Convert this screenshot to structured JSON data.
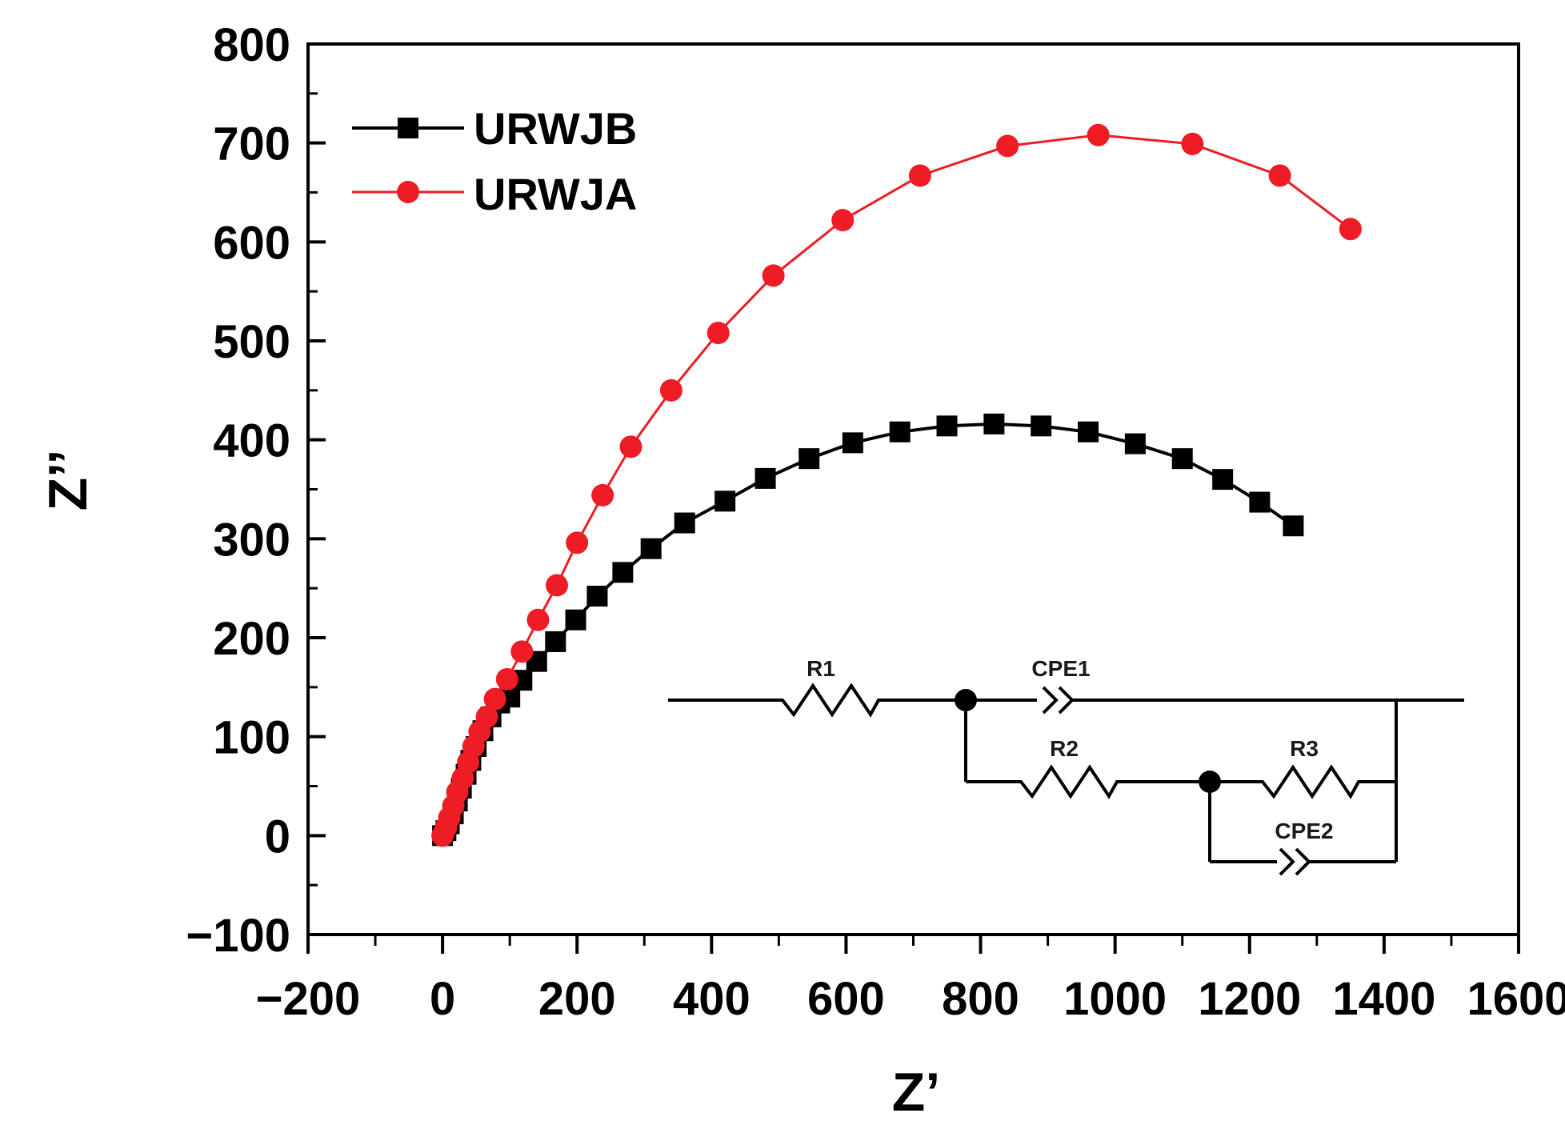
{
  "chart_data": {
    "type": "scatter",
    "xlabel": "Z’",
    "ylabel": "Z’’",
    "xlim": [
      -200,
      1600
    ],
    "ylim": [
      -100,
      800
    ],
    "x_ticks": [
      -200,
      0,
      200,
      400,
      600,
      800,
      1000,
      1200,
      1400,
      1600
    ],
    "y_ticks": [
      -100,
      0,
      100,
      200,
      300,
      400,
      500,
      600,
      700,
      800
    ],
    "x_tick_labels": [
      "−200",
      "0",
      "200",
      "400",
      "600",
      "800",
      "1000",
      "1200",
      "1400",
      "1600"
    ],
    "y_tick_labels": [
      "−100",
      "0",
      "100",
      "200",
      "300",
      "400",
      "500",
      "600",
      "700",
      "800"
    ],
    "grid": false,
    "legend_position": "top-left",
    "series": [
      {
        "name": "URWJB",
        "color": "#000000",
        "marker": "square",
        "points": [
          [
            0,
            0
          ],
          [
            5,
            5
          ],
          [
            10,
            12
          ],
          [
            16,
            22
          ],
          [
            22,
            35
          ],
          [
            28,
            48
          ],
          [
            35,
            62
          ],
          [
            42,
            76
          ],
          [
            50,
            90
          ],
          [
            60,
            106
          ],
          [
            72,
            120
          ],
          [
            85,
            134
          ],
          [
            100,
            140
          ],
          [
            118,
            157
          ],
          [
            140,
            176
          ],
          [
            168,
            196
          ],
          [
            198,
            218
          ],
          [
            230,
            242
          ],
          [
            268,
            266
          ],
          [
            310,
            290
          ],
          [
            360,
            316
          ],
          [
            420,
            338
          ],
          [
            480,
            361
          ],
          [
            545,
            381
          ],
          [
            610,
            397
          ],
          [
            680,
            408
          ],
          [
            750,
            414
          ],
          [
            820,
            416
          ],
          [
            890,
            414
          ],
          [
            960,
            408
          ],
          [
            1030,
            396
          ],
          [
            1100,
            381
          ],
          [
            1160,
            360
          ],
          [
            1215,
            337
          ],
          [
            1265,
            313
          ]
        ]
      },
      {
        "name": "URWJA",
        "color": "#ee1c24",
        "marker": "circle",
        "points": [
          [
            0,
            0
          ],
          [
            5,
            8
          ],
          [
            10,
            18
          ],
          [
            16,
            30
          ],
          [
            22,
            44
          ],
          [
            30,
            58
          ],
          [
            38,
            74
          ],
          [
            46,
            90
          ],
          [
            55,
            105
          ],
          [
            66,
            120
          ],
          [
            78,
            138
          ],
          [
            96,
            158
          ],
          [
            118,
            186
          ],
          [
            142,
            218
          ],
          [
            170,
            253
          ],
          [
            200,
            296
          ],
          [
            238,
            344
          ],
          [
            280,
            393
          ],
          [
            340,
            450
          ],
          [
            410,
            508
          ],
          [
            492,
            566
          ],
          [
            595,
            622
          ],
          [
            710,
            667
          ],
          [
            840,
            697
          ],
          [
            975,
            708
          ],
          [
            1115,
            699
          ],
          [
            1245,
            667
          ],
          [
            1350,
            613
          ]
        ]
      }
    ],
    "inset_circuit": {
      "labels": [
        "R1",
        "CPE1",
        "R2",
        "R3",
        "CPE2"
      ]
    }
  }
}
